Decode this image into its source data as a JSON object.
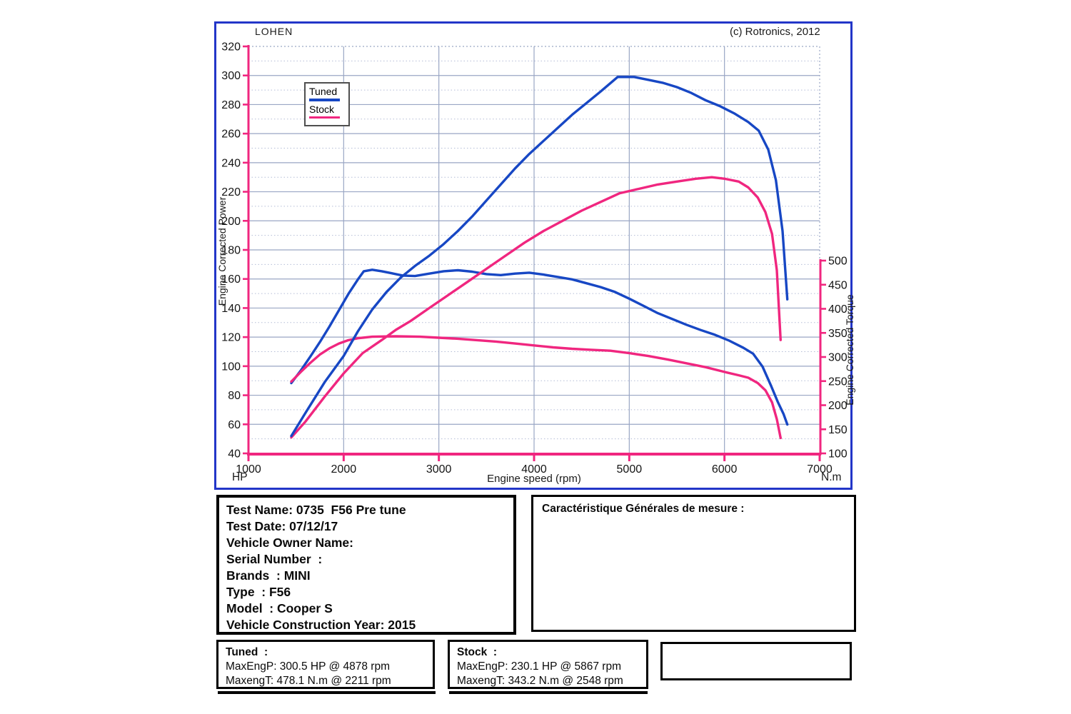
{
  "header": {
    "brand": "LOHEN",
    "copyright": "(c) Rotronics, 2012"
  },
  "chart_data": {
    "type": "line",
    "title": "",
    "grid": true,
    "legend_position": "top-left-inset",
    "x_axis": {
      "label": "Engine speed (rpm)",
      "min": 1000,
      "max": 7000,
      "step": 1000
    },
    "power_axis": {
      "label": "Engine Corrected Power",
      "unit": "HP",
      "min": 40,
      "max": 320,
      "step": 20,
      "minor_step": 10
    },
    "torque_axis": {
      "label": "Engine Corrected Torque",
      "unit": "N.m",
      "min": 100,
      "max": 500,
      "step": 50
    },
    "legend": [
      {
        "name": "Tuned",
        "color": "#1747c4"
      },
      {
        "name": "Stock",
        "color": "#f0267f"
      }
    ],
    "series": [
      {
        "name": "tuned-torque",
        "legend": "Tuned",
        "axis": "torque",
        "color": "#1747c4",
        "points": [
          [
            1450,
            246
          ],
          [
            1550,
            272
          ],
          [
            1650,
            301
          ],
          [
            1750,
            331
          ],
          [
            1850,
            363
          ],
          [
            1950,
            397
          ],
          [
            2050,
            431
          ],
          [
            2150,
            461
          ],
          [
            2211,
            478
          ],
          [
            2300,
            481
          ],
          [
            2400,
            478
          ],
          [
            2500,
            474
          ],
          [
            2620,
            469
          ],
          [
            2750,
            468
          ],
          [
            2900,
            473
          ],
          [
            3050,
            478
          ],
          [
            3200,
            480
          ],
          [
            3350,
            477
          ],
          [
            3500,
            472
          ],
          [
            3650,
            470
          ],
          [
            3800,
            473
          ],
          [
            3950,
            475
          ],
          [
            4100,
            471
          ],
          [
            4250,
            466
          ],
          [
            4400,
            461
          ],
          [
            4550,
            453
          ],
          [
            4700,
            445
          ],
          [
            4850,
            435
          ],
          [
            5000,
            421
          ],
          [
            5150,
            406
          ],
          [
            5300,
            391
          ],
          [
            5450,
            379
          ],
          [
            5600,
            367
          ],
          [
            5750,
            356
          ],
          [
            5900,
            346
          ],
          [
            6050,
            334
          ],
          [
            6200,
            319
          ],
          [
            6300,
            307
          ],
          [
            6400,
            280
          ],
          [
            6490,
            240
          ],
          [
            6560,
            207
          ],
          [
            6620,
            182
          ],
          [
            6660,
            160
          ]
        ]
      },
      {
        "name": "stock-torque",
        "legend": "Stock",
        "axis": "torque",
        "color": "#f0267f",
        "points": [
          [
            1450,
            249
          ],
          [
            1550,
            269
          ],
          [
            1650,
            288
          ],
          [
            1750,
            305
          ],
          [
            1850,
            318
          ],
          [
            1950,
            328
          ],
          [
            2050,
            335
          ],
          [
            2150,
            339
          ],
          [
            2300,
            342
          ],
          [
            2548,
            343
          ],
          [
            2800,
            342
          ],
          [
            3000,
            340
          ],
          [
            3200,
            338
          ],
          [
            3400,
            335
          ],
          [
            3600,
            332
          ],
          [
            3800,
            328
          ],
          [
            4000,
            324
          ],
          [
            4200,
            320
          ],
          [
            4400,
            317
          ],
          [
            4600,
            315
          ],
          [
            4800,
            313
          ],
          [
            5000,
            308
          ],
          [
            5200,
            302
          ],
          [
            5400,
            295
          ],
          [
            5600,
            287
          ],
          [
            5800,
            279
          ],
          [
            6000,
            269
          ],
          [
            6150,
            262
          ],
          [
            6250,
            257
          ],
          [
            6350,
            246
          ],
          [
            6430,
            231
          ],
          [
            6500,
            206
          ],
          [
            6550,
            171
          ],
          [
            6590,
            132
          ]
        ]
      },
      {
        "name": "stock-power",
        "legend": "Stock",
        "axis": "power",
        "color": "#f0267f",
        "points": [
          [
            1450,
            51
          ],
          [
            1600,
            62
          ],
          [
            1800,
            79
          ],
          [
            2000,
            95
          ],
          [
            2200,
            109
          ],
          [
            2400,
            118
          ],
          [
            2548,
            125
          ],
          [
            2700,
            131
          ],
          [
            2900,
            140
          ],
          [
            3100,
            149
          ],
          [
            3300,
            158
          ],
          [
            3500,
            167
          ],
          [
            3700,
            176
          ],
          [
            3900,
            185
          ],
          [
            4100,
            193
          ],
          [
            4300,
            200
          ],
          [
            4500,
            207
          ],
          [
            4700,
            213
          ],
          [
            4900,
            219
          ],
          [
            5100,
            222
          ],
          [
            5300,
            225
          ],
          [
            5500,
            227
          ],
          [
            5700,
            229
          ],
          [
            5867,
            230
          ],
          [
            6000,
            229
          ],
          [
            6150,
            227
          ],
          [
            6250,
            223
          ],
          [
            6350,
            216
          ],
          [
            6430,
            206
          ],
          [
            6500,
            191
          ],
          [
            6550,
            166
          ],
          [
            6590,
            118
          ]
        ]
      },
      {
        "name": "tuned-power",
        "legend": "Tuned",
        "axis": "power",
        "color": "#1747c4",
        "points": [
          [
            1450,
            52
          ],
          [
            1600,
            68
          ],
          [
            1800,
            89
          ],
          [
            2000,
            107
          ],
          [
            2150,
            124
          ],
          [
            2300,
            139
          ],
          [
            2450,
            151
          ],
          [
            2600,
            161
          ],
          [
            2750,
            169
          ],
          [
            2900,
            176
          ],
          [
            3050,
            184
          ],
          [
            3200,
            193
          ],
          [
            3350,
            203
          ],
          [
            3500,
            214
          ],
          [
            3650,
            225
          ],
          [
            3800,
            236
          ],
          [
            3950,
            246
          ],
          [
            4100,
            255
          ],
          [
            4250,
            264
          ],
          [
            4400,
            273
          ],
          [
            4550,
            281
          ],
          [
            4700,
            289
          ],
          [
            4878,
            299
          ],
          [
            5050,
            299
          ],
          [
            5200,
            297
          ],
          [
            5350,
            295
          ],
          [
            5500,
            292
          ],
          [
            5650,
            288
          ],
          [
            5800,
            283
          ],
          [
            5950,
            279
          ],
          [
            6100,
            274
          ],
          [
            6250,
            268
          ],
          [
            6360,
            262
          ],
          [
            6460,
            249
          ],
          [
            6540,
            228
          ],
          [
            6610,
            193
          ],
          [
            6660,
            146
          ]
        ]
      }
    ]
  },
  "info_box": {
    "lines": [
      "Test Name: 0735  F56 Pre tune",
      "Test Date: 07/12/17",
      "Vehicle Owner Name:",
      "Serial Number  :",
      "Brands  : MINI",
      "Type  : F56",
      "Model  : Cooper S",
      "Vehicle Construction Year: 2015"
    ]
  },
  "measure_box": {
    "title": "Caractéristique Générales de mesure :"
  },
  "results": {
    "tuned": {
      "title": "Tuned  :",
      "max_power": "MaxEngP: 300.5 HP @ 4878 rpm",
      "max_torque": "MaxengT: 478.1 N.m @ 2211 rpm"
    },
    "stock": {
      "title": "Stock  :",
      "max_power": "MaxEngP: 230.1 HP @ 5867 rpm",
      "max_torque": "MaxengT: 343.2 N.m @ 2548 rpm"
    }
  },
  "colors": {
    "curve_blue": "#1747c4",
    "curve_pink": "#f0267f",
    "frame_blue": "#2336c8",
    "grid_major": "#9aa6c4",
    "grid_minor": "#b4bdd6"
  }
}
